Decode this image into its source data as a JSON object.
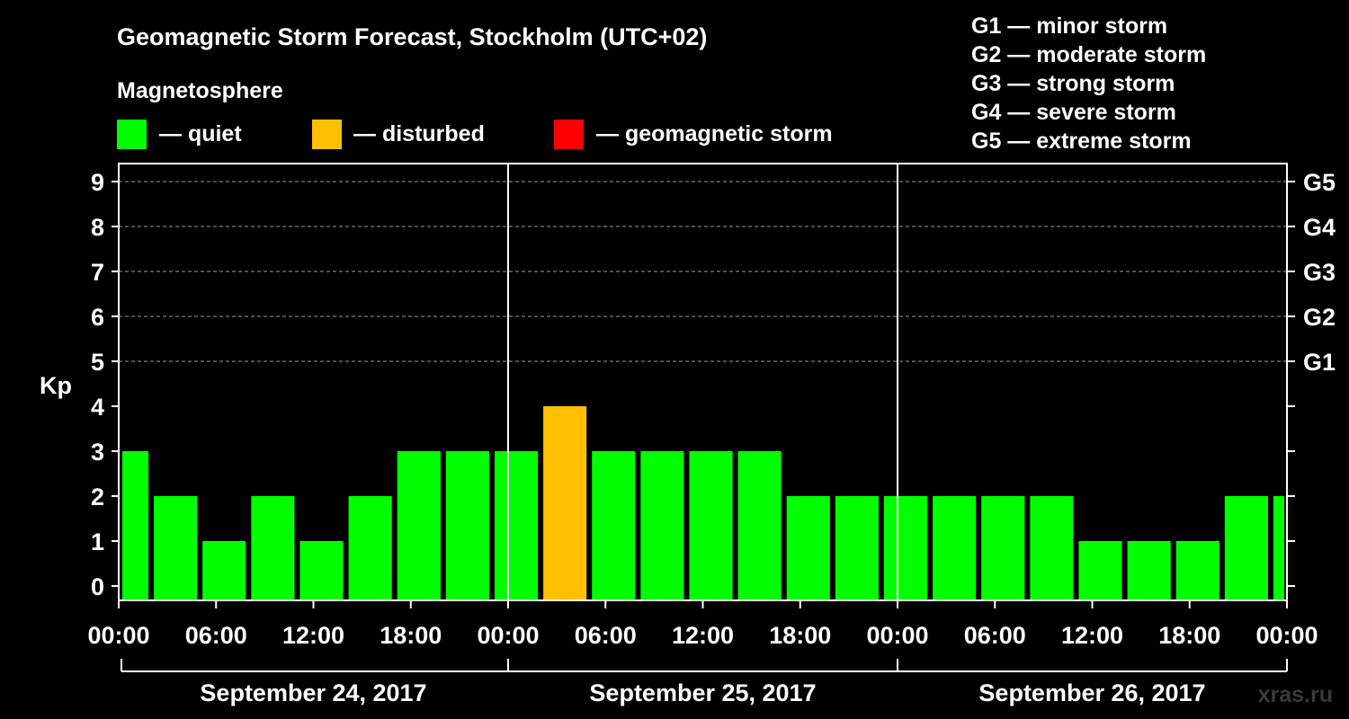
{
  "chart_data": {
    "type": "bar",
    "title": "Geomagnetic Storm Forecast, Stockholm (UTC+02)",
    "legend_title": "Magnetosphere",
    "legend": [
      {
        "label": "— quiet",
        "color": "#00ff00"
      },
      {
        "label": "— disturbed",
        "color": "#ffc000"
      },
      {
        "label": "— geomagnetic storm",
        "color": "#ff0000"
      }
    ],
    "storm_scale": [
      "G1 — minor storm",
      "G2 — moderate storm",
      "G3 — strong storm",
      "G4 — severe storm",
      "G5 — extreme storm"
    ],
    "ylabel": "Kp",
    "ylim": [
      0,
      9
    ],
    "y_ticks": [
      "0",
      "1",
      "2",
      "3",
      "4",
      "5",
      "6",
      "7",
      "8",
      "9"
    ],
    "right_ticks": [
      {
        "kp": 5,
        "label": "G1"
      },
      {
        "kp": 6,
        "label": "G2"
      },
      {
        "kp": 7,
        "label": "G3"
      },
      {
        "kp": 8,
        "label": "G4"
      },
      {
        "kp": 9,
        "label": "G5"
      }
    ],
    "x_range_hours": [
      0,
      72
    ],
    "x_tick_labels": [
      "00:00",
      "06:00",
      "12:00",
      "18:00",
      "00:00",
      "06:00",
      "12:00",
      "18:00",
      "00:00",
      "06:00",
      "12:00",
      "18:00",
      "00:00"
    ],
    "days": [
      "September 24, 2017",
      "September 25, 2017",
      "September 26, 2017"
    ],
    "bar_hours": [
      0,
      2,
      5,
      8,
      11,
      14,
      17,
      20,
      23,
      26,
      29,
      32,
      35,
      38,
      41,
      44,
      47,
      50,
      53,
      56,
      59,
      62,
      65,
      68,
      71
    ],
    "bar_widths_hours": [
      2,
      3,
      3,
      3,
      3,
      3,
      3,
      3,
      3,
      3,
      3,
      3,
      3,
      3,
      3,
      3,
      3,
      3,
      3,
      3,
      3,
      3,
      3,
      3,
      1
    ],
    "values": [
      3,
      2,
      1,
      2,
      1,
      2,
      3,
      3,
      3,
      4,
      3,
      3,
      3,
      3,
      2,
      2,
      2,
      2,
      2,
      2,
      1,
      1,
      1,
      2,
      2
    ],
    "quiet_max": 3,
    "storm_min": 5
  },
  "watermark": "xras.ru"
}
